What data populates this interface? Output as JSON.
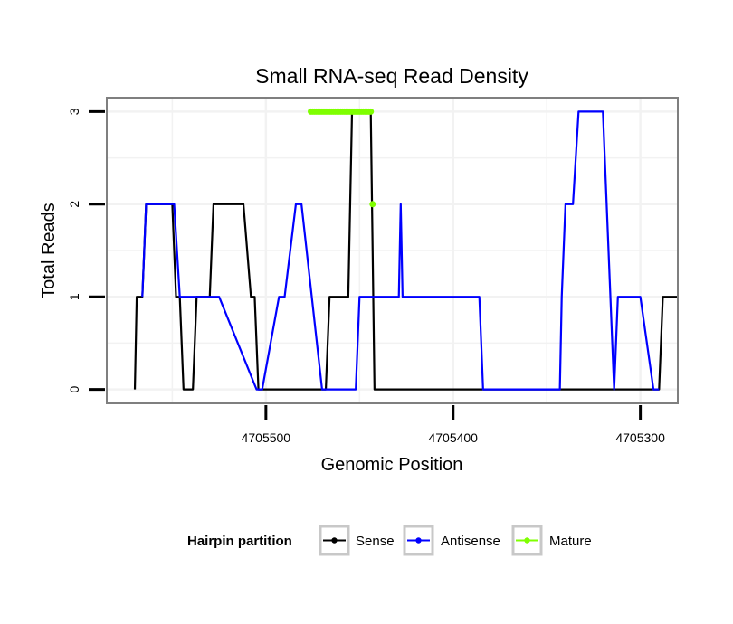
{
  "chart_data": {
    "type": "line",
    "title": "Small RNA-seq Read Density",
    "xlabel": "Genomic Position",
    "ylabel": "Total Reads",
    "x_reversed": true,
    "xlim": [
      4705585,
      4705280
    ],
    "ylim": [
      -0.15,
      3.15
    ],
    "x_ticks": [
      4705500,
      4705400,
      4705300
    ],
    "x_tick_labels": [
      "4705500",
      "4705400",
      "4705300"
    ],
    "y_ticks": [
      0,
      1,
      2,
      3
    ],
    "y_tick_labels": [
      "0",
      "1",
      "2",
      "3"
    ],
    "grid": true,
    "legend": {
      "title": "Hairpin partition",
      "placement": "bottom",
      "entries": [
        "Sense",
        "Antisense",
        "Mature"
      ]
    },
    "series": [
      {
        "name": "Sense",
        "color": "#000000",
        "x": [
          4705570,
          4705569,
          4705566,
          4705564,
          4705562,
          4705550,
          4705548,
          4705546,
          4705544,
          4705539,
          4705537,
          4705535,
          4705530,
          4705528,
          4705526,
          4705512,
          4705508,
          4705506,
          4705504,
          4705468,
          4705466,
          4705464,
          4705456,
          4705454,
          4705446,
          4705444,
          4705442,
          4705400,
          4705300,
          4705290,
          4705288,
          4705286,
          4705280
        ],
        "y": [
          0,
          1,
          1,
          2,
          2,
          2,
          1,
          1,
          0,
          0,
          1,
          1,
          1,
          2,
          2,
          2,
          1,
          1,
          0,
          0,
          1,
          1,
          1,
          3,
          3,
          3,
          0,
          0,
          0,
          0,
          1,
          1,
          1
        ]
      },
      {
        "name": "Antisense",
        "color": "#0000ff",
        "x": [
          4705566,
          4705564,
          4705549,
          4705546,
          4705525,
          4705505,
          4705502,
          4705493,
          4705490,
          4705484,
          4705481,
          4705470,
          4705466,
          4705457,
          4705452,
          4705450,
          4705429,
          4705428,
          4705427,
          4705386,
          4705384,
          4705343,
          4705342,
          4705340,
          4705336,
          4705333,
          4705320,
          4705314,
          4705312,
          4705300,
          4705293,
          4705290
        ],
        "y": [
          1,
          2,
          2,
          1,
          1,
          0,
          0,
          1,
          1,
          2,
          2,
          0,
          0,
          0,
          0,
          1,
          1,
          2,
          1,
          1,
          0,
          0,
          1,
          2,
          2,
          3,
          3,
          0,
          1,
          1,
          0,
          0
        ]
      },
      {
        "name": "Mature",
        "color": "#7fff00",
        "x": [
          4705476,
          4705475,
          4705474,
          4705473,
          4705472,
          4705471,
          4705470,
          4705469,
          4705468,
          4705467,
          4705466,
          4705465,
          4705464,
          4705463,
          4705462,
          4705461,
          4705460,
          4705459,
          4705458,
          4705457,
          4705456,
          4705455,
          4705454,
          4705453,
          4705452,
          4705451,
          4705450,
          4705449,
          4705448,
          4705447,
          4705446,
          4705445,
          4705444,
          4705443
        ],
        "y": [
          3,
          3,
          3,
          3,
          3,
          3,
          3,
          3,
          3,
          3,
          3,
          3,
          3,
          3,
          3,
          3,
          3,
          3,
          3,
          3,
          3,
          3,
          3,
          3,
          3,
          3,
          3,
          3,
          3,
          3,
          3,
          3,
          3,
          2
        ]
      }
    ]
  }
}
